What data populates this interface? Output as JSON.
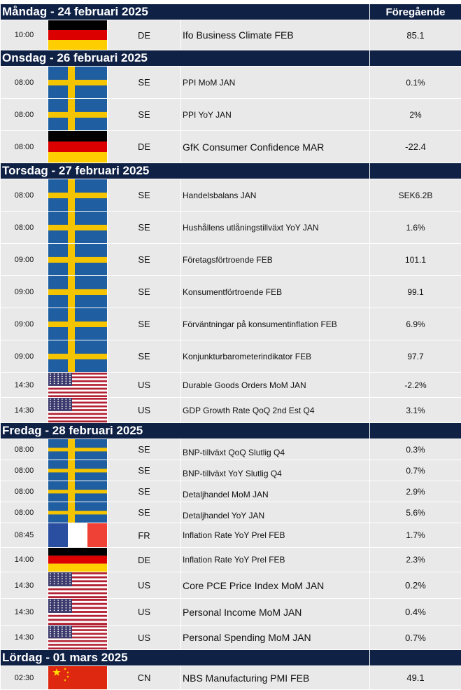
{
  "header_previous_label": "Föregående",
  "days": [
    {
      "title": "Måndag - 24 februari  2025",
      "events": [
        {
          "time": "10:00",
          "flag": "de",
          "country": "DE",
          "event": "Ifo Business Climate FEB",
          "previous": "85.1"
        }
      ]
    },
    {
      "title": "Onsdag - 26 februari  2025",
      "events": [
        {
          "time": "08:00",
          "flag": "se",
          "country": "SE",
          "event": "PPI MoM JAN",
          "previous": "0.1%"
        },
        {
          "time": "08:00",
          "flag": "se",
          "country": "SE",
          "event": "PPI YoY JAN",
          "previous": "2%"
        },
        {
          "time": "08:00",
          "flag": "de",
          "country": "DE",
          "event": "GfK Consumer Confidence MAR",
          "previous": "-22.4"
        }
      ]
    },
    {
      "title": "Torsdag - 27 februari  2025",
      "events": [
        {
          "time": "08:00",
          "flag": "se",
          "country": "SE",
          "event": "Handelsbalans JAN",
          "previous": "SEK6.2B"
        },
        {
          "time": "08:00",
          "flag": "se",
          "country": "SE",
          "event": "Hushållens utlåningstillväxt YoY JAN",
          "previous": "1.6%"
        },
        {
          "time": "09:00",
          "flag": "se",
          "country": "SE",
          "event": "Företagsförtroende FEB",
          "previous": "101.1"
        },
        {
          "time": "09:00",
          "flag": "se",
          "country": "SE",
          "event": "Konsumentförtroende FEB",
          "previous": "99.1"
        },
        {
          "time": "09:00",
          "flag": "se",
          "country": "SE",
          "event": "Förväntningar på konsumentinflation FEB",
          "previous": "6.9%"
        },
        {
          "time": "09:00",
          "flag": "se",
          "country": "SE",
          "event": "Konjunkturbarometerindikator FEB",
          "previous": "97.7"
        },
        {
          "time": "14:30",
          "flag": "us",
          "country": "US",
          "event": "Durable Goods Orders MoM JAN",
          "previous": "-2.2%"
        },
        {
          "time": "14:30",
          "flag": "us",
          "country": "US",
          "event": "GDP Growth Rate QoQ 2nd Est Q4",
          "previous": "3.1%"
        }
      ]
    },
    {
      "title": "Fredag - 28 februari  2025",
      "events": [
        {
          "time": "08:00",
          "flag": "se",
          "country": "SE",
          "event": "BNP-tillväxt QoQ Slutlig Q4",
          "previous": "0.3%"
        },
        {
          "time": "08:00",
          "flag": "se",
          "country": "SE",
          "event": "BNP-tillväxt YoY Slutlig Q4",
          "previous": "0.7%"
        },
        {
          "time": "08:00",
          "flag": "se",
          "country": "SE",
          "event": "Detaljhandel MoM JAN",
          "previous": "2.9%"
        },
        {
          "time": "08:00",
          "flag": "se",
          "country": "SE",
          "event": "Detaljhandel YoY JAN",
          "previous": "5.6%"
        },
        {
          "time": "08:45",
          "flag": "fr",
          "country": "FR",
          "event": "Inflation Rate YoY Prel FEB",
          "previous": "1.7%"
        },
        {
          "time": "14:00",
          "flag": "de",
          "country": "DE",
          "event": "Inflation Rate YoY Prel FEB",
          "previous": "2.3%"
        },
        {
          "time": "14:30",
          "flag": "us",
          "country": "US",
          "event": "Core PCE Price Index MoM JAN",
          "previous": "0.2%"
        },
        {
          "time": "14:30",
          "flag": "us",
          "country": "US",
          "event": "Personal Income MoM JAN",
          "previous": "0.4%"
        },
        {
          "time": "14:30",
          "flag": "us",
          "country": "US",
          "event": "Personal Spending MoM JAN",
          "previous": "0.7%"
        }
      ]
    },
    {
      "title": "Lördag - 01 mars  2025",
      "events": [
        {
          "time": "02:30",
          "flag": "cn",
          "country": "CN",
          "event": "NBS Manufacturing PMI FEB",
          "previous": "49.1"
        }
      ]
    }
  ],
  "colors": {
    "header_bg": "#0f2145",
    "row_bg": "#e9e9e9",
    "se_blue": "#1f5ea1",
    "se_yellow": "#f5c400",
    "de_black": "#000000",
    "de_red": "#dd0000",
    "de_gold": "#ffce00",
    "us_red": "#b22234",
    "us_blue": "#3c3b6e",
    "fr_blue": "#2a4ea0",
    "fr_red": "#ef4135",
    "cn_red": "#de2910",
    "cn_yellow": "#ffde00"
  }
}
